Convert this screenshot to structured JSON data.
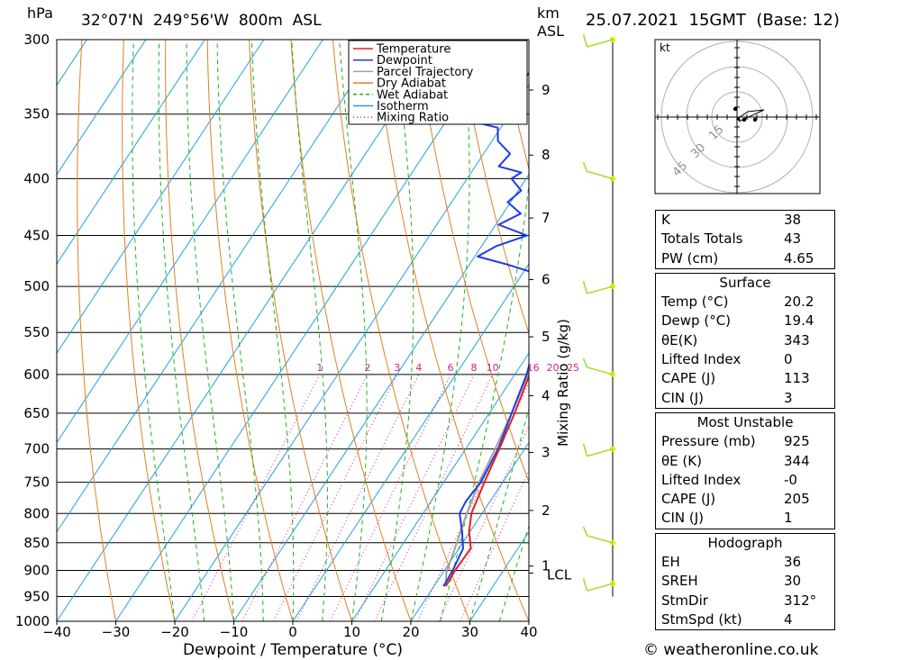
{
  "header": {
    "hpa_label": "hPa",
    "location": "32°07'N  249°56'W  800m  ASL",
    "km_label": "km",
    "asl_label": "ASL",
    "datetime": "25.07.2021  15GMT  (Base: 12)"
  },
  "footer": {
    "credit": "© weatheronline.co.uk"
  },
  "chart_data": {
    "type": "line",
    "subtype": "skew-t log-p sounding",
    "xlabel": "Dewpoint / Temperature (°C)",
    "ylabel_left": "hPa",
    "ylabel_right": "km ASL",
    "mixing_ratio_axis_label": "Mixing Ratio (g/kg)",
    "xlim": [
      -40,
      40
    ],
    "ylim": [
      1000,
      300
    ],
    "x_ticks": [
      "-40",
      "-30",
      "-20",
      "-10",
      "0",
      "10",
      "20",
      "30",
      "40"
    ],
    "pressure_ticks": [
      300,
      350,
      400,
      450,
      500,
      550,
      600,
      650,
      700,
      750,
      800,
      850,
      900,
      950,
      1000
    ],
    "height_ticks": [
      {
        "km": "1",
        "p": 892
      },
      {
        "km": "2",
        "p": 795
      },
      {
        "km": "3",
        "p": 705
      },
      {
        "km": "4",
        "p": 627
      },
      {
        "km": "5",
        "p": 555
      },
      {
        "km": "6",
        "p": 493
      },
      {
        "km": "7",
        "p": 434
      },
      {
        "km": "8",
        "p": 381
      },
      {
        "km": "9",
        "p": 333
      }
    ],
    "lcl_label": "LCL",
    "lcl_pressure": 905,
    "mixing_ratio_labels": [
      "1",
      "2",
      "3",
      "4",
      "6",
      "8",
      "10",
      "16",
      "20",
      "25"
    ],
    "legend": [
      "Temperature",
      "Dewpoint",
      "Parcel Trajectory",
      "Dry Adiabat",
      "Wet Adiabat",
      "Isotherm",
      "Mixing Ratio"
    ],
    "legend_position": "top-right",
    "colors": {
      "temperature": "#e02020",
      "dewpoint": "#1e3ce6",
      "parcel": "#a0a0a0",
      "dry_adiabat": "#e08020",
      "wet_adiabat": "#20b020",
      "isotherm": "#20a0e0",
      "mixing_ratio": "#d0208a",
      "wind": "#a0e020"
    },
    "series": [
      {
        "name": "Temperature",
        "points": [
          [
            930,
            22.0
          ],
          [
            900,
            21.8
          ],
          [
            860,
            22.0
          ],
          [
            830,
            19.8
          ],
          [
            800,
            18.2
          ],
          [
            750,
            16.9
          ],
          [
            700,
            15.7
          ],
          [
            650,
            14.3
          ],
          [
            600,
            12.5
          ],
          [
            560,
            10.3
          ],
          [
            520,
            8.4
          ],
          [
            500,
            6.9
          ],
          [
            490,
            6.4
          ],
          [
            470,
            2.6
          ],
          [
            450,
            1.2
          ],
          [
            440,
            0.5
          ],
          [
            430,
            -1.5
          ],
          [
            410,
            -3.0
          ],
          [
            400,
            -4.5
          ],
          [
            380,
            -7.5
          ],
          [
            370,
            -8.5
          ],
          [
            360,
            -9.5
          ],
          [
            340,
            -10.8
          ],
          [
            320,
            -12.8
          ],
          [
            300,
            -17.5
          ]
        ]
      },
      {
        "name": "Dewpoint",
        "points": [
          [
            930,
            21.6
          ],
          [
            900,
            21.4
          ],
          [
            860,
            20.7
          ],
          [
            830,
            18.6
          ],
          [
            800,
            16.2
          ],
          [
            780,
            15.9
          ],
          [
            750,
            16.3
          ],
          [
            700,
            15.5
          ],
          [
            650,
            13.8
          ],
          [
            600,
            12.0
          ],
          [
            560,
            9.8
          ],
          [
            520,
            7.8
          ],
          [
            500,
            6.2
          ],
          [
            490,
            5.8
          ],
          [
            487,
            2.5
          ],
          [
            478,
            -3.5
          ],
          [
            470,
            -9.5
          ],
          [
            460,
            -7.5
          ],
          [
            450,
            -3.5
          ],
          [
            440,
            -9.5
          ],
          [
            430,
            -7.0
          ],
          [
            420,
            -10.5
          ],
          [
            410,
            -9.5
          ],
          [
            400,
            -12.5
          ],
          [
            395,
            -11.5
          ],
          [
            390,
            -16.0
          ],
          [
            380,
            -15.5
          ],
          [
            370,
            -19.0
          ],
          [
            360,
            -20.5
          ],
          [
            355,
            -26.0
          ],
          [
            352,
            -31.0
          ],
          [
            348,
            -26.0
          ],
          [
            340,
            -22.5
          ],
          [
            335,
            -27.5
          ],
          [
            330,
            -27.5
          ],
          [
            325,
            -21.5
          ],
          [
            315,
            -21.0
          ],
          [
            305,
            -20.0
          ],
          [
            300,
            -21.5
          ]
        ]
      },
      {
        "name": "Parcel Trajectory",
        "points": [
          [
            930,
            22.0
          ],
          [
            905,
            20.6
          ],
          [
            850,
            19.0
          ],
          [
            800,
            17.4
          ],
          [
            750,
            16.0
          ],
          [
            700,
            15.0
          ],
          [
            650,
            13.8
          ],
          [
            600,
            12.2
          ],
          [
            550,
            10.7
          ],
          [
            500,
            8.7
          ],
          [
            450,
            6.2
          ],
          [
            400,
            2.0
          ],
          [
            350,
            -3.6
          ],
          [
            300,
            -13.0
          ]
        ]
      }
    ],
    "wind_barbs_pressure": [
      300,
      400,
      500,
      600,
      700,
      850,
      925
    ],
    "hodograph": {
      "unit_label": "kt",
      "ring_labels": [
        "15",
        "30",
        "45"
      ]
    }
  },
  "indices": {
    "rows": [
      {
        "label": "K",
        "value": "38"
      },
      {
        "label": "Totals Totals",
        "value": "43"
      },
      {
        "label": "PW (cm)",
        "value": "4.65"
      }
    ]
  },
  "surface": {
    "title": "Surface",
    "rows": [
      {
        "label": "Temp (°C)",
        "value": "20.2"
      },
      {
        "label": "Dewp (°C)",
        "value": "19.4"
      },
      {
        "label": "θE(K)",
        "value": "343"
      },
      {
        "label": "Lifted Index",
        "value": "0"
      },
      {
        "label": "CAPE (J)",
        "value": "113"
      },
      {
        "label": "CIN (J)",
        "value": "3"
      }
    ]
  },
  "most_unstable": {
    "title": "Most Unstable",
    "rows": [
      {
        "label": "Pressure (mb)",
        "value": "925"
      },
      {
        "label": "θE (K)",
        "value": "344"
      },
      {
        "label": "Lifted Index",
        "value": "-0"
      },
      {
        "label": "CAPE (J)",
        "value": "205"
      },
      {
        "label": "CIN (J)",
        "value": "1"
      }
    ]
  },
  "hodograph_table": {
    "title": "Hodograph",
    "rows": [
      {
        "label": "EH",
        "value": "36"
      },
      {
        "label": "SREH",
        "value": "30"
      },
      {
        "label": "StmDir",
        "value": "312°"
      },
      {
        "label": "StmSpd (kt)",
        "value": "4"
      }
    ]
  }
}
